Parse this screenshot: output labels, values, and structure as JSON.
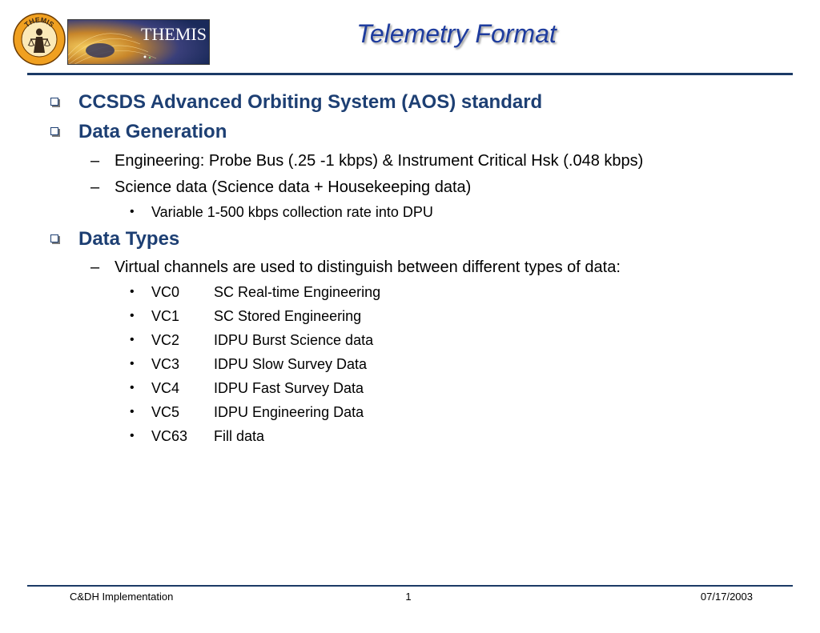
{
  "header": {
    "title": "Telemetry Format",
    "logo_seal_text": "THEMIS",
    "logo_banner_text": "THEMIS"
  },
  "outline": [
    {
      "level": 1,
      "text": "CCSDS Advanced Orbiting System (AOS) standard"
    },
    {
      "level": 1,
      "text": "Data Generation"
    },
    {
      "level": 2,
      "text": "Engineering: Probe Bus (.25 -1 kbps) & Instrument Critical Hsk (.048 kbps)"
    },
    {
      "level": 2,
      "text": "Science data (Science data + Housekeeping data)"
    },
    {
      "level": 3,
      "text": "Variable 1-500 kbps collection rate into DPU"
    },
    {
      "level": 1,
      "text": "Data Types"
    },
    {
      "level": 2,
      "text": "Virtual channels are used to distinguish between different types of data:"
    }
  ],
  "virtual_channels": [
    {
      "code": "VC0",
      "description": "SC Real-time Engineering"
    },
    {
      "code": "VC1",
      "description": "SC Stored Engineering"
    },
    {
      "code": "VC2",
      "description": "IDPU Burst Science data"
    },
    {
      "code": "VC3",
      "description": "IDPU Slow Survey Data"
    },
    {
      "code": "VC4",
      "description": "IDPU Fast Survey Data"
    },
    {
      "code": "VC5",
      "description": "IDPU Engineering Data"
    },
    {
      "code": "VC63",
      "description": "Fill data"
    }
  ],
  "bullets": {
    "dash": "–",
    "dot": "•"
  },
  "footer": {
    "left": "C&DH Implementation",
    "page_number": "1",
    "date": "07/17/2003"
  },
  "colors": {
    "title": "#1e3c9e",
    "heading": "#1d3f73",
    "rule": "#1b3a66",
    "logo_orange": "#f0a020",
    "logo_navy": "#1a2a5a"
  }
}
